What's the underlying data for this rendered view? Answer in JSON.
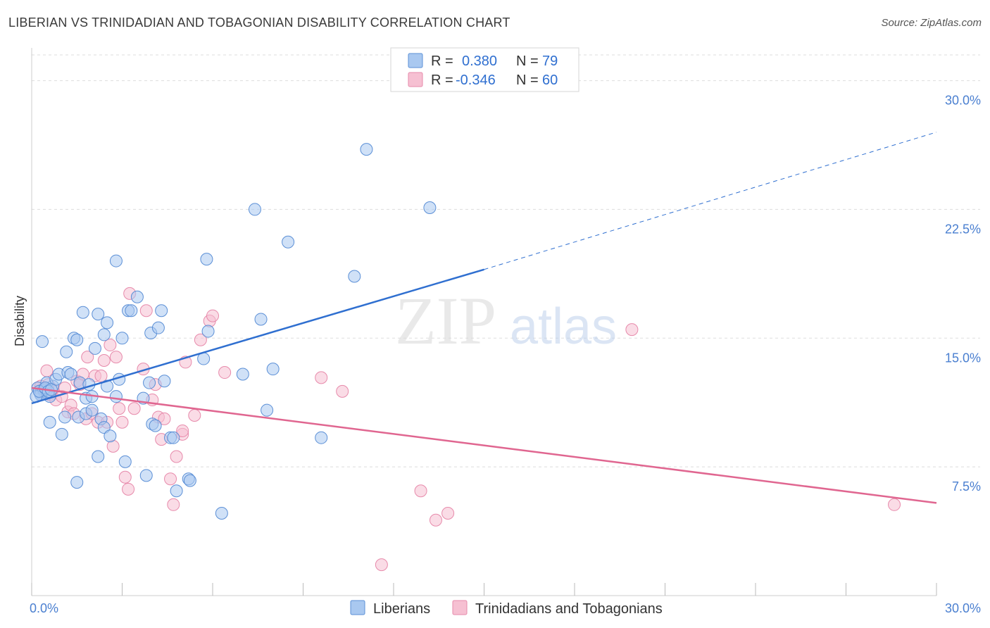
{
  "title": "LIBERIAN VS TRINIDADIAN AND TOBAGONIAN DISABILITY CORRELATION CHART",
  "source": "Source: ZipAtlas.com",
  "watermark": {
    "zip": "ZIP",
    "atlas": "atlas"
  },
  "colors": {
    "blue_fill": "#a9c8f0",
    "blue_stroke": "#5b8fd6",
    "blue_line": "#2f6fd0",
    "pink_fill": "#f6c0d2",
    "pink_stroke": "#e78aab",
    "pink_line": "#e06690",
    "axis_text": "#4a7fd0",
    "grid": "#dddddd"
  },
  "legend_top": {
    "rows": [
      {
        "r_label": "R =",
        "r_value": "0.380",
        "n_label": "N =",
        "n_value": "79"
      },
      {
        "r_label": "R =",
        "r_value": "-0.346",
        "n_label": "N =",
        "n_value": "60"
      }
    ]
  },
  "legend_bottom": {
    "items": [
      "Liberians",
      "Trinidadians and Tobagonians"
    ]
  },
  "chart_data": {
    "type": "scatter",
    "ylabel": "Disability",
    "xlim": [
      0,
      30
    ],
    "ylim": [
      0,
      31.5
    ],
    "y_ticks": [
      {
        "value": 7.5,
        "label": "7.5%"
      },
      {
        "value": 15.0,
        "label": "15.0%"
      },
      {
        "value": 22.5,
        "label": "22.5%"
      },
      {
        "value": 30.0,
        "label": "30.0%"
      }
    ],
    "x_tick_labels": [
      {
        "value": 0,
        "label": "0.0%"
      },
      {
        "value": 30,
        "label": "30.0%"
      }
    ],
    "grid": true,
    "legend": "top-center",
    "series": [
      {
        "name": "Liberians",
        "trend": {
          "x0": 0,
          "y0": 11.2,
          "x1": 15,
          "y1": 19.0,
          "dashed_to_x": 30,
          "dashed_to_y": 27.0
        },
        "points": [
          [
            0.2,
            12.1
          ],
          [
            0.3,
            11.8
          ],
          [
            0.4,
            11.9
          ],
          [
            0.5,
            12.0
          ],
          [
            0.6,
            11.6
          ],
          [
            0.7,
            12.2
          ],
          [
            0.3,
            11.7
          ],
          [
            0.4,
            12.0
          ],
          [
            0.35,
            14.8
          ],
          [
            0.5,
            12.4
          ],
          [
            0.6,
            10.1
          ],
          [
            0.8,
            12.6
          ],
          [
            0.9,
            12.9
          ],
          [
            1.0,
            9.4
          ],
          [
            1.1,
            10.4
          ],
          [
            1.15,
            14.2
          ],
          [
            1.2,
            13.0
          ],
          [
            1.3,
            12.9
          ],
          [
            1.4,
            15.0
          ],
          [
            1.5,
            14.9
          ],
          [
            1.5,
            6.6
          ],
          [
            1.55,
            10.4
          ],
          [
            1.6,
            12.4
          ],
          [
            1.7,
            16.5
          ],
          [
            1.8,
            10.6
          ],
          [
            1.8,
            11.5
          ],
          [
            1.9,
            12.3
          ],
          [
            2.0,
            10.8
          ],
          [
            2.0,
            11.6
          ],
          [
            2.1,
            14.4
          ],
          [
            2.2,
            16.4
          ],
          [
            2.2,
            8.1
          ],
          [
            2.3,
            10.3
          ],
          [
            2.4,
            9.8
          ],
          [
            2.4,
            15.2
          ],
          [
            2.5,
            12.2
          ],
          [
            2.5,
            15.9
          ],
          [
            2.6,
            9.3
          ],
          [
            2.8,
            19.5
          ],
          [
            2.8,
            11.6
          ],
          [
            2.9,
            12.6
          ],
          [
            3.0,
            15.0
          ],
          [
            3.1,
            7.8
          ],
          [
            3.2,
            16.6
          ],
          [
            3.3,
            16.6
          ],
          [
            3.5,
            17.4
          ],
          [
            3.7,
            11.5
          ],
          [
            3.8,
            7.0
          ],
          [
            3.9,
            12.4
          ],
          [
            3.95,
            15.3
          ],
          [
            4.0,
            10.0
          ],
          [
            4.1,
            9.9
          ],
          [
            4.2,
            15.6
          ],
          [
            4.3,
            16.6
          ],
          [
            4.4,
            12.5
          ],
          [
            4.6,
            9.2
          ],
          [
            4.7,
            9.2
          ],
          [
            4.8,
            6.1
          ],
          [
            5.2,
            6.8
          ],
          [
            5.25,
            6.7
          ],
          [
            5.7,
            13.8
          ],
          [
            5.8,
            19.6
          ],
          [
            5.85,
            15.4
          ],
          [
            6.3,
            4.8
          ],
          [
            7.0,
            12.9
          ],
          [
            7.4,
            22.5
          ],
          [
            7.6,
            16.1
          ],
          [
            7.8,
            10.8
          ],
          [
            8.0,
            13.2
          ],
          [
            8.5,
            20.6
          ],
          [
            9.6,
            9.2
          ],
          [
            10.7,
            18.6
          ],
          [
            11.1,
            26.0
          ],
          [
            13.2,
            22.6
          ],
          [
            0.15,
            11.6
          ],
          [
            0.25,
            11.9
          ],
          [
            0.45,
            12.1
          ],
          [
            0.55,
            11.9
          ],
          [
            0.65,
            12.0
          ]
        ]
      },
      {
        "name": "Trinidadians and Tobagonians",
        "trend": {
          "x0": 0,
          "y0": 12.1,
          "x1": 30,
          "y1": 5.4
        },
        "points": [
          [
            0.2,
            12.1
          ],
          [
            0.3,
            12.2
          ],
          [
            0.4,
            11.9
          ],
          [
            0.5,
            13.1
          ],
          [
            0.6,
            11.7
          ],
          [
            0.7,
            12.0
          ],
          [
            0.8,
            11.4
          ],
          [
            1.0,
            11.6
          ],
          [
            1.1,
            12.1
          ],
          [
            1.2,
            10.7
          ],
          [
            1.3,
            11.1
          ],
          [
            1.4,
            10.6
          ],
          [
            1.5,
            12.5
          ],
          [
            1.6,
            12.3
          ],
          [
            1.7,
            12.9
          ],
          [
            1.8,
            10.3
          ],
          [
            1.85,
            13.9
          ],
          [
            2.0,
            10.6
          ],
          [
            2.1,
            12.8
          ],
          [
            2.2,
            10.1
          ],
          [
            2.3,
            12.8
          ],
          [
            2.4,
            13.7
          ],
          [
            2.5,
            10.1
          ],
          [
            2.6,
            14.6
          ],
          [
            2.7,
            8.7
          ],
          [
            2.8,
            13.9
          ],
          [
            2.9,
            10.9
          ],
          [
            3.0,
            10.1
          ],
          [
            3.1,
            6.9
          ],
          [
            3.2,
            6.2
          ],
          [
            3.25,
            17.6
          ],
          [
            3.4,
            10.9
          ],
          [
            3.7,
            13.2
          ],
          [
            3.8,
            16.6
          ],
          [
            4.0,
            11.4
          ],
          [
            4.1,
            12.3
          ],
          [
            4.2,
            10.4
          ],
          [
            4.3,
            9.1
          ],
          [
            4.4,
            10.3
          ],
          [
            4.6,
            6.8
          ],
          [
            4.7,
            5.3
          ],
          [
            4.8,
            8.1
          ],
          [
            5.0,
            9.4
          ],
          [
            5.0,
            9.6
          ],
          [
            5.1,
            13.6
          ],
          [
            5.4,
            10.5
          ],
          [
            5.6,
            14.9
          ],
          [
            5.9,
            16.0
          ],
          [
            6.0,
            16.3
          ],
          [
            6.4,
            13.0
          ],
          [
            9.6,
            12.7
          ],
          [
            10.3,
            11.9
          ],
          [
            11.6,
            1.8
          ],
          [
            12.9,
            6.1
          ],
          [
            13.4,
            4.4
          ],
          [
            13.8,
            4.8
          ],
          [
            19.9,
            15.5
          ],
          [
            28.6,
            5.3
          ],
          [
            0.35,
            12.0
          ],
          [
            0.55,
            12.3
          ]
        ]
      }
    ]
  }
}
